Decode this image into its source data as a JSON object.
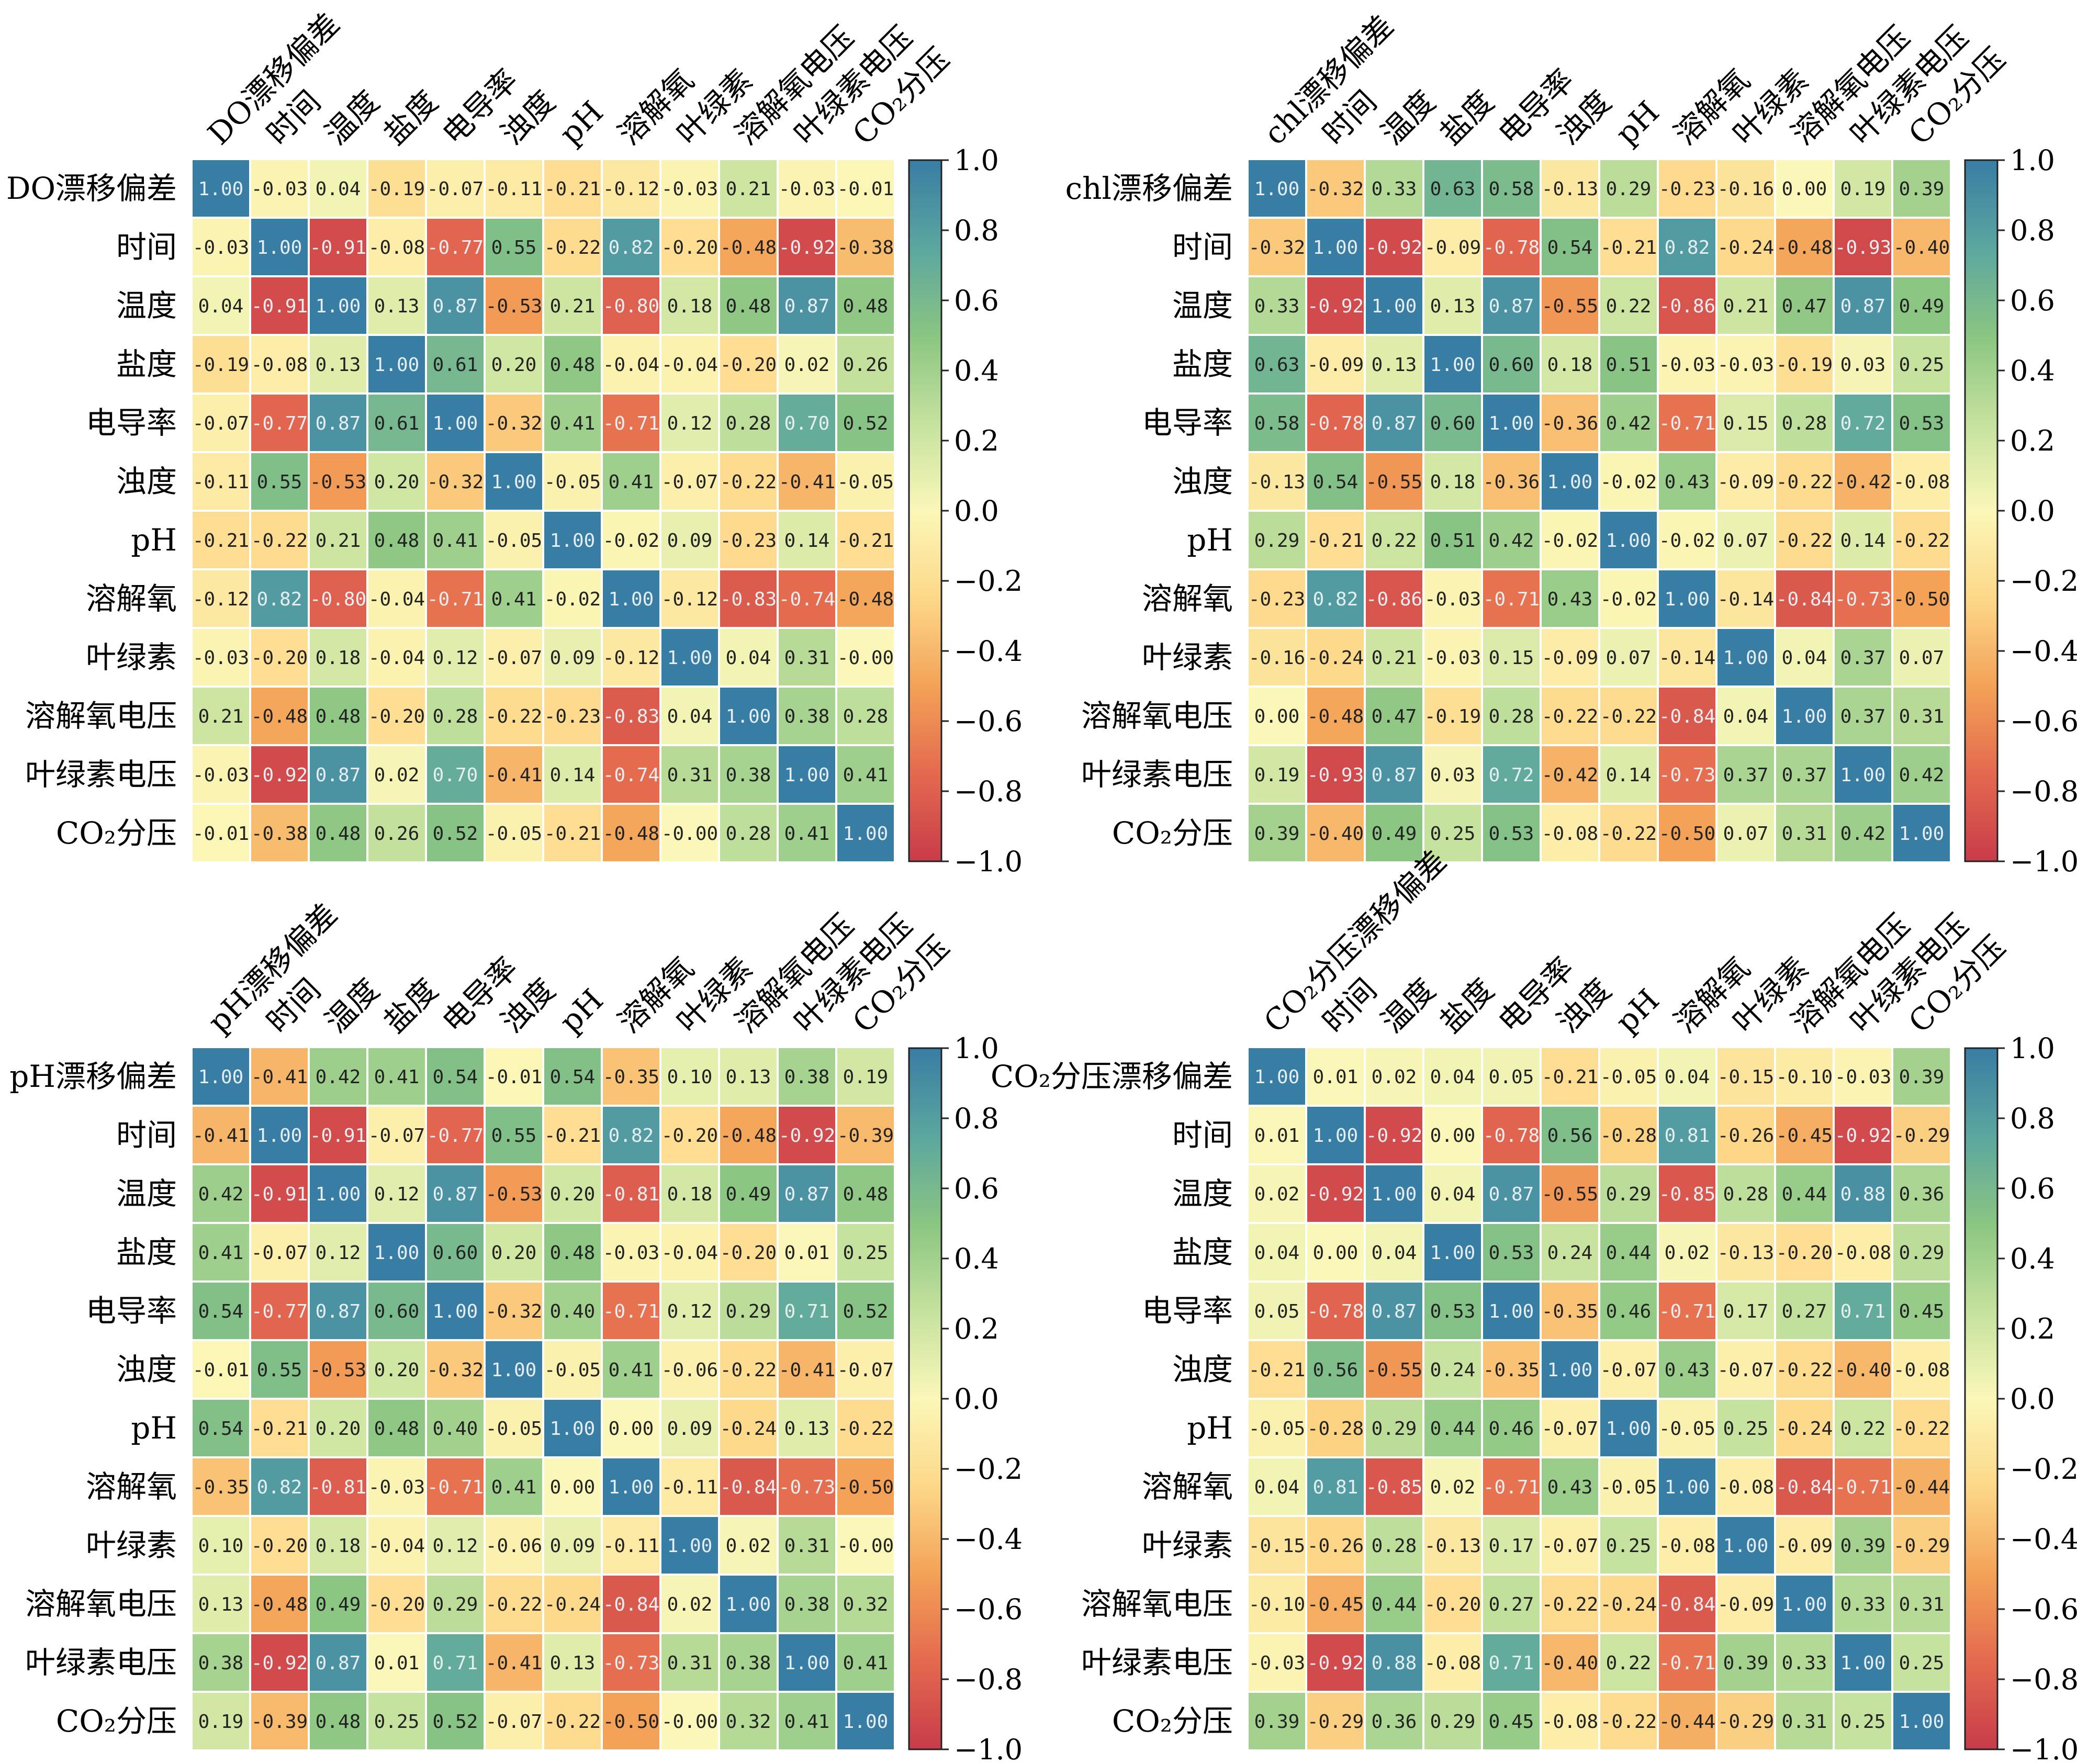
{
  "chart_data": [
    {
      "type": "heatmap",
      "labels": [
        "DO漂移偏差",
        "时间",
        "温度",
        "盐度",
        "电导率",
        "浊度",
        "pH",
        "溶解氧",
        "叶绿素",
        "溶解氧电压",
        "叶绿素电压",
        "CO₂分压"
      ],
      "matrix": [
        [
          1.0,
          -0.03,
          0.04,
          -0.19,
          -0.07,
          -0.11,
          -0.21,
          -0.12,
          -0.03,
          0.21,
          -0.03,
          -0.01
        ],
        [
          -0.03,
          1.0,
          -0.91,
          -0.08,
          -0.77,
          0.55,
          -0.22,
          0.82,
          -0.2,
          -0.48,
          -0.92,
          -0.38
        ],
        [
          0.04,
          -0.91,
          1.0,
          0.13,
          0.87,
          -0.53,
          0.21,
          -0.8,
          0.18,
          0.48,
          0.87,
          0.48
        ],
        [
          -0.19,
          -0.08,
          0.13,
          1.0,
          0.61,
          0.2,
          0.48,
          -0.04,
          -0.04,
          -0.2,
          0.02,
          0.26
        ],
        [
          -0.07,
          -0.77,
          0.87,
          0.61,
          1.0,
          -0.32,
          0.41,
          -0.71,
          0.12,
          0.28,
          0.7,
          0.52
        ],
        [
          -0.11,
          0.55,
          -0.53,
          0.2,
          -0.32,
          1.0,
          -0.05,
          0.41,
          -0.07,
          -0.22,
          -0.41,
          -0.05
        ],
        [
          -0.21,
          -0.22,
          0.21,
          0.48,
          0.41,
          -0.05,
          1.0,
          -0.02,
          0.09,
          -0.23,
          0.14,
          -0.21
        ],
        [
          -0.12,
          0.82,
          -0.8,
          -0.04,
          -0.71,
          0.41,
          -0.02,
          1.0,
          -0.12,
          -0.83,
          -0.74,
          -0.48
        ],
        [
          -0.03,
          -0.2,
          0.18,
          -0.04,
          0.12,
          -0.07,
          0.09,
          -0.12,
          1.0,
          0.04,
          0.31,
          -0.0
        ],
        [
          0.21,
          -0.48,
          0.48,
          -0.2,
          0.28,
          -0.22,
          -0.23,
          -0.83,
          0.04,
          1.0,
          0.38,
          0.28
        ],
        [
          -0.03,
          -0.92,
          0.87,
          0.02,
          0.7,
          -0.41,
          0.14,
          -0.74,
          0.31,
          0.38,
          1.0,
          0.41
        ],
        [
          -0.01,
          -0.38,
          0.48,
          0.26,
          0.52,
          -0.05,
          -0.21,
          -0.48,
          -0.0,
          0.28,
          0.41,
          1.0
        ]
      ],
      "colorbar_ticks": [
        "1.0",
        "0.8",
        "0.6",
        "0.4",
        "0.2",
        "0.0",
        "−0.2",
        "−0.4",
        "−0.6",
        "−0.8",
        "−1.0"
      ],
      "vmin": -1.0,
      "vmax": 1.0
    },
    {
      "type": "heatmap",
      "labels": [
        "chl漂移偏差",
        "时间",
        "温度",
        "盐度",
        "电导率",
        "浊度",
        "pH",
        "溶解氧",
        "叶绿素",
        "溶解氧电压",
        "叶绿素电压",
        "CO₂分压"
      ],
      "matrix": [
        [
          1.0,
          -0.32,
          0.33,
          0.63,
          0.58,
          -0.13,
          0.29,
          -0.23,
          -0.16,
          0.0,
          0.19,
          0.39
        ],
        [
          -0.32,
          1.0,
          -0.92,
          -0.09,
          -0.78,
          0.54,
          -0.21,
          0.82,
          -0.24,
          -0.48,
          -0.93,
          -0.4
        ],
        [
          0.33,
          -0.92,
          1.0,
          0.13,
          0.87,
          -0.55,
          0.22,
          -0.86,
          0.21,
          0.47,
          0.87,
          0.49
        ],
        [
          0.63,
          -0.09,
          0.13,
          1.0,
          0.6,
          0.18,
          0.51,
          -0.03,
          -0.03,
          -0.19,
          0.03,
          0.25
        ],
        [
          0.58,
          -0.78,
          0.87,
          0.6,
          1.0,
          -0.36,
          0.42,
          -0.71,
          0.15,
          0.28,
          0.72,
          0.53
        ],
        [
          -0.13,
          0.54,
          -0.55,
          0.18,
          -0.36,
          1.0,
          -0.02,
          0.43,
          -0.09,
          -0.22,
          -0.42,
          -0.08
        ],
        [
          0.29,
          -0.21,
          0.22,
          0.51,
          0.42,
          -0.02,
          1.0,
          -0.02,
          0.07,
          -0.22,
          0.14,
          -0.22
        ],
        [
          -0.23,
          0.82,
          -0.86,
          -0.03,
          -0.71,
          0.43,
          -0.02,
          1.0,
          -0.14,
          -0.84,
          -0.73,
          -0.5
        ],
        [
          -0.16,
          -0.24,
          0.21,
          -0.03,
          0.15,
          -0.09,
          0.07,
          -0.14,
          1.0,
          0.04,
          0.37,
          0.07
        ],
        [
          0.0,
          -0.48,
          0.47,
          -0.19,
          0.28,
          -0.22,
          -0.22,
          -0.84,
          0.04,
          1.0,
          0.37,
          0.31
        ],
        [
          0.19,
          -0.93,
          0.87,
          0.03,
          0.72,
          -0.42,
          0.14,
          -0.73,
          0.37,
          0.37,
          1.0,
          0.42
        ],
        [
          0.39,
          -0.4,
          0.49,
          0.25,
          0.53,
          -0.08,
          -0.22,
          -0.5,
          0.07,
          0.31,
          0.42,
          1.0
        ]
      ],
      "colorbar_ticks": [
        "1.0",
        "0.8",
        "0.6",
        "0.4",
        "0.2",
        "0.0",
        "−0.2",
        "−0.4",
        "−0.6",
        "−0.8",
        "−1.0"
      ],
      "vmin": -1.0,
      "vmax": 1.0
    },
    {
      "type": "heatmap",
      "labels": [
        "pH漂移偏差",
        "时间",
        "温度",
        "盐度",
        "电导率",
        "浊度",
        "pH",
        "溶解氧",
        "叶绿素",
        "溶解氧电压",
        "叶绿素电压",
        "CO₂分压"
      ],
      "matrix": [
        [
          1.0,
          -0.41,
          0.42,
          0.41,
          0.54,
          -0.01,
          0.54,
          -0.35,
          0.1,
          0.13,
          0.38,
          0.19
        ],
        [
          -0.41,
          1.0,
          -0.91,
          -0.07,
          -0.77,
          0.55,
          -0.21,
          0.82,
          -0.2,
          -0.48,
          -0.92,
          -0.39
        ],
        [
          0.42,
          -0.91,
          1.0,
          0.12,
          0.87,
          -0.53,
          0.2,
          -0.81,
          0.18,
          0.49,
          0.87,
          0.48
        ],
        [
          0.41,
          -0.07,
          0.12,
          1.0,
          0.6,
          0.2,
          0.48,
          -0.03,
          -0.04,
          -0.2,
          0.01,
          0.25
        ],
        [
          0.54,
          -0.77,
          0.87,
          0.6,
          1.0,
          -0.32,
          0.4,
          -0.71,
          0.12,
          0.29,
          0.71,
          0.52
        ],
        [
          -0.01,
          0.55,
          -0.53,
          0.2,
          -0.32,
          1.0,
          -0.05,
          0.41,
          -0.06,
          -0.22,
          -0.41,
          -0.07
        ],
        [
          0.54,
          -0.21,
          0.2,
          0.48,
          0.4,
          -0.05,
          1.0,
          0.0,
          0.09,
          -0.24,
          0.13,
          -0.22
        ],
        [
          -0.35,
          0.82,
          -0.81,
          -0.03,
          -0.71,
          0.41,
          0.0,
          1.0,
          -0.11,
          -0.84,
          -0.73,
          -0.5
        ],
        [
          0.1,
          -0.2,
          0.18,
          -0.04,
          0.12,
          -0.06,
          0.09,
          -0.11,
          1.0,
          0.02,
          0.31,
          -0.0
        ],
        [
          0.13,
          -0.48,
          0.49,
          -0.2,
          0.29,
          -0.22,
          -0.24,
          -0.84,
          0.02,
          1.0,
          0.38,
          0.32
        ],
        [
          0.38,
          -0.92,
          0.87,
          0.01,
          0.71,
          -0.41,
          0.13,
          -0.73,
          0.31,
          0.38,
          1.0,
          0.41
        ],
        [
          0.19,
          -0.39,
          0.48,
          0.25,
          0.52,
          -0.07,
          -0.22,
          -0.5,
          -0.0,
          0.32,
          0.41,
          1.0
        ]
      ],
      "colorbar_ticks": [
        "1.0",
        "0.8",
        "0.6",
        "0.4",
        "0.2",
        "0.0",
        "−0.2",
        "−0.4",
        "−0.6",
        "−0.8",
        "−1.0"
      ],
      "vmin": -1.0,
      "vmax": 1.0
    },
    {
      "type": "heatmap",
      "labels": [
        "CO₂分压漂移偏差",
        "时间",
        "温度",
        "盐度",
        "电导率",
        "浊度",
        "pH",
        "溶解氧",
        "叶绿素",
        "溶解氧电压",
        "叶绿素电压",
        "CO₂分压"
      ],
      "matrix": [
        [
          1.0,
          0.01,
          0.02,
          0.04,
          0.05,
          -0.21,
          -0.05,
          0.04,
          -0.15,
          -0.1,
          -0.03,
          0.39
        ],
        [
          0.01,
          1.0,
          -0.92,
          0.0,
          -0.78,
          0.56,
          -0.28,
          0.81,
          -0.26,
          -0.45,
          -0.92,
          -0.29
        ],
        [
          0.02,
          -0.92,
          1.0,
          0.04,
          0.87,
          -0.55,
          0.29,
          -0.85,
          0.28,
          0.44,
          0.88,
          0.36
        ],
        [
          0.04,
          0.0,
          0.04,
          1.0,
          0.53,
          0.24,
          0.44,
          0.02,
          -0.13,
          -0.2,
          -0.08,
          0.29
        ],
        [
          0.05,
          -0.78,
          0.87,
          0.53,
          1.0,
          -0.35,
          0.46,
          -0.71,
          0.17,
          0.27,
          0.71,
          0.45
        ],
        [
          -0.21,
          0.56,
          -0.55,
          0.24,
          -0.35,
          1.0,
          -0.07,
          0.43,
          -0.07,
          -0.22,
          -0.4,
          -0.08
        ],
        [
          -0.05,
          -0.28,
          0.29,
          0.44,
          0.46,
          -0.07,
          1.0,
          -0.05,
          0.25,
          -0.24,
          0.22,
          -0.22
        ],
        [
          0.04,
          0.81,
          -0.85,
          0.02,
          -0.71,
          0.43,
          -0.05,
          1.0,
          -0.08,
          -0.84,
          -0.71,
          -0.44
        ],
        [
          -0.15,
          -0.26,
          0.28,
          -0.13,
          0.17,
          -0.07,
          0.25,
          -0.08,
          1.0,
          -0.09,
          0.39,
          -0.29
        ],
        [
          -0.1,
          -0.45,
          0.44,
          -0.2,
          0.27,
          -0.22,
          -0.24,
          -0.84,
          -0.09,
          1.0,
          0.33,
          0.31
        ],
        [
          -0.03,
          -0.92,
          0.88,
          -0.08,
          0.71,
          -0.4,
          0.22,
          -0.71,
          0.39,
          0.33,
          1.0,
          0.25
        ],
        [
          0.39,
          -0.29,
          0.36,
          0.29,
          0.45,
          -0.08,
          -0.22,
          -0.44,
          -0.29,
          0.31,
          0.25,
          1.0
        ]
      ],
      "colorbar_ticks": [
        "1.0",
        "0.8",
        "0.6",
        "0.4",
        "0.2",
        "0.0",
        "−0.2",
        "−0.4",
        "−0.6",
        "−0.8",
        "−1.0"
      ],
      "vmin": -1.0,
      "vmax": 1.0
    }
  ],
  "colormap": [
    "#c83c4a",
    "#e4694f",
    "#f3a257",
    "#fdd889",
    "#fbf7b8",
    "#c5e29e",
    "#8ac582",
    "#5ca6a0",
    "#387da4"
  ]
}
